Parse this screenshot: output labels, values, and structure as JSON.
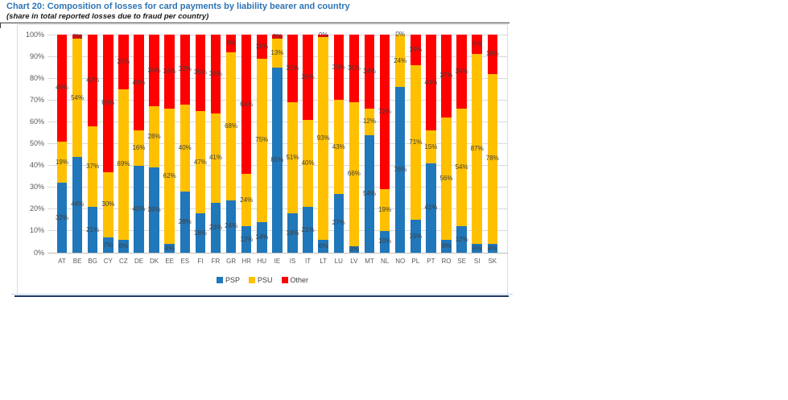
{
  "header": {
    "title": "Chart 20: Composition of losses for card payments by liability bearer and country",
    "subtitle": "(share in total reported losses due to fraud per country)"
  },
  "chart_data": {
    "type": "bar",
    "stacked": true,
    "title": "Chart 20: Composition of losses for card payments by liability bearer and country",
    "subtitle": "(share in total reported losses due to fraud per country)",
    "categories": [
      "AT",
      "BE",
      "BG",
      "CY",
      "CZ",
      "DE",
      "DK",
      "EE",
      "ES",
      "FI",
      "FR",
      "GR",
      "HR",
      "HU",
      "IE",
      "IS",
      "IT",
      "LT",
      "LU",
      "LV",
      "MT",
      "NL",
      "NO",
      "PL",
      "PT",
      "RO",
      "SE",
      "SI",
      "SK"
    ],
    "series": [
      {
        "name": "PSP",
        "color": "#2077B9",
        "values": [
          32,
          44,
          21,
          7,
          6,
          40,
          39,
          4,
          28,
          18,
          23,
          24,
          12,
          14,
          85,
          18,
          21,
          6,
          27,
          3,
          54,
          10,
          76,
          15,
          41,
          6,
          12,
          4,
          4
        ]
      },
      {
        "name": "PSU",
        "color": "#FFC000",
        "values": [
          19,
          54,
          37,
          30,
          69,
          16,
          28,
          62,
          40,
          47,
          41,
          68,
          24,
          75,
          13,
          51,
          40,
          93,
          43,
          66,
          12,
          19,
          24,
          71,
          15,
          56,
          54,
          87,
          78
        ]
      },
      {
        "name": "Other",
        "color": "#FF0000",
        "values": [
          49,
          2,
          42,
          63,
          25,
          43,
          34,
          34,
          32,
          35,
          36,
          8,
          64,
          11,
          2,
          31,
          39,
          0,
          30,
          31,
          34,
          72,
          0,
          14,
          44,
          37,
          34,
          9,
          19
        ]
      }
    ],
    "ylim": [
      0,
      100
    ],
    "yticks": [
      "0%",
      "10%",
      "20%",
      "30%",
      "40%",
      "50%",
      "60%",
      "70%",
      "80%",
      "90%",
      "100%"
    ],
    "grid": true,
    "legend_position": "bottom",
    "label_suffix": "%",
    "label_color": "#404040",
    "axis_color": "#595959"
  }
}
